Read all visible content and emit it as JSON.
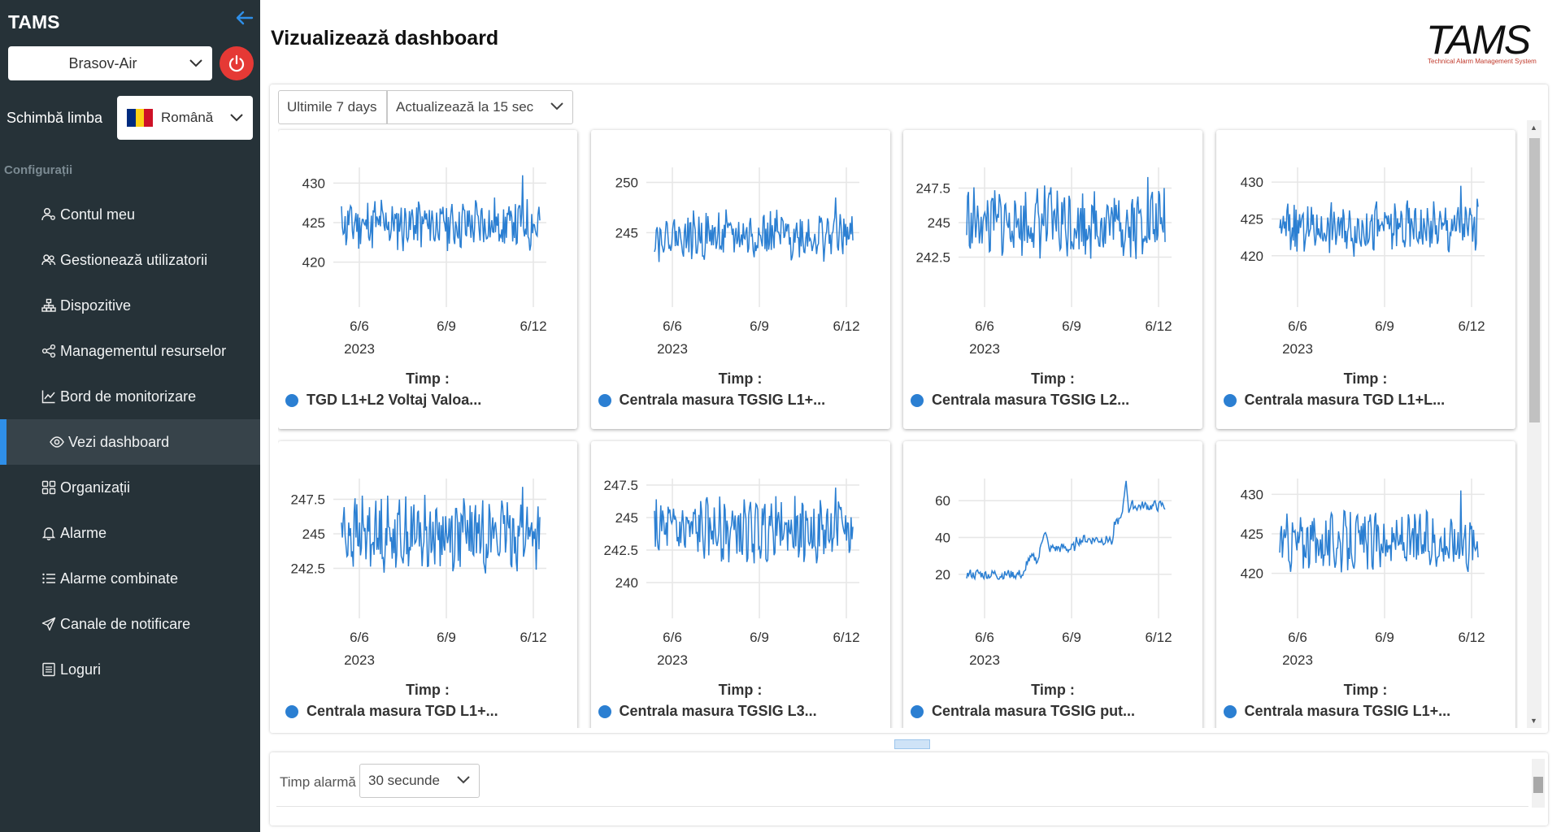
{
  "app": {
    "name": "TAMS",
    "logo_text": "TAMS",
    "logo_subtitle": "Technical Alarm Management System"
  },
  "org_select": {
    "value": "Brasov-Air"
  },
  "language": {
    "label": "Schimbă limba",
    "value": "Română",
    "flag_colors": [
      "#002B7F",
      "#FCD116",
      "#CE1126"
    ]
  },
  "sidebar": {
    "section": "Configurații",
    "items": [
      {
        "label": "Contul meu",
        "icon": "user-gear-icon"
      },
      {
        "label": "Gestionează utilizatorii",
        "icon": "users-icon"
      },
      {
        "label": "Dispozitive",
        "icon": "sitemap-icon"
      },
      {
        "label": "Managementul resurselor",
        "icon": "share-nodes-icon"
      },
      {
        "label": "Bord de monitorizare",
        "icon": "chart-line-icon"
      },
      {
        "label": "Vezi dashboard",
        "icon": "eye-icon",
        "active": true
      },
      {
        "label": "Organizații",
        "icon": "grid-icon"
      },
      {
        "label": "Alarme",
        "icon": "bell-icon"
      },
      {
        "label": "Alarme combinate",
        "icon": "list-icon"
      },
      {
        "label": "Canale de notificare",
        "icon": "paper-plane-icon"
      },
      {
        "label": "Loguri",
        "icon": "log-icon"
      }
    ]
  },
  "header": {
    "title": "Vizualizează dashboard"
  },
  "toolbar": {
    "range_label": "Ultimile 7 days",
    "refresh_value": "Actualizează la 15 sec"
  },
  "bottom": {
    "alarm_label": "Timp alarmă",
    "alarm_value": "30 secunde"
  },
  "colors": {
    "sidebar_bg": "#263238",
    "accent": "#2f8fe8",
    "series": "#2b7fd2",
    "power": "#e53935",
    "logo_red": "#c0392b"
  },
  "chart_data": [
    {
      "type": "line",
      "legend": "TGD L1+L2 Voltaj Valoa...",
      "xlabel": "Timp :",
      "x_ticks": [
        "6/6",
        "6/9",
        "6/12"
      ],
      "x_year": "2023",
      "y_ticks": [
        420,
        425,
        430
      ],
      "ylim": [
        418,
        432
      ],
      "base": 424.8,
      "amp": 2.8,
      "spike": 431.0,
      "trend": "flat",
      "seed": 11
    },
    {
      "type": "line",
      "legend": "Centrala masura TGSIG L1+...",
      "xlabel": "Timp :",
      "x_ticks": [
        "6/6",
        "6/9",
        "6/12"
      ],
      "x_year": "2023",
      "y_ticks": [
        245,
        250
      ],
      "ylim": [
        240.5,
        251.5
      ],
      "base": 244.7,
      "amp": 2.0,
      "spike": 248.5,
      "trend": "flat",
      "seed": 22
    },
    {
      "type": "line",
      "legend": "Centrala masura TGSIG L2...",
      "xlabel": "Timp :",
      "x_ticks": [
        "6/6",
        "6/9",
        "6/12"
      ],
      "x_year": "2023",
      "y_ticks": [
        242.5,
        245,
        247.5
      ],
      "ylim": [
        241.0,
        249.0
      ],
      "base": 245.0,
      "amp": 2.2,
      "spike": 248.3,
      "trend": "flat",
      "seed": 33
    },
    {
      "type": "line",
      "legend": "Centrala masura TGD L1+L...",
      "xlabel": "Timp :",
      "x_ticks": [
        "6/6",
        "6/9",
        "6/12"
      ],
      "x_year": "2023",
      "y_ticks": [
        420,
        425,
        430
      ],
      "ylim": [
        417,
        432
      ],
      "base": 423.8,
      "amp": 3.0,
      "spike": 429.5,
      "trend": "flat",
      "seed": 44
    },
    {
      "type": "line",
      "legend": "Centrala masura TGD L1+...",
      "xlabel": "Timp :",
      "x_ticks": [
        "6/6",
        "6/9",
        "6/12"
      ],
      "x_year": "2023",
      "y_ticks": [
        242.5,
        245,
        247.5
      ],
      "ylim": [
        241.0,
        249.0
      ],
      "base": 245.0,
      "amp": 2.2,
      "spike": 248.4,
      "trend": "flat",
      "seed": 55
    },
    {
      "type": "line",
      "legend": "Centrala masura TGSIG L3...",
      "xlabel": "Timp :",
      "x_ticks": [
        "6/6",
        "6/9",
        "6/12"
      ],
      "x_year": "2023",
      "y_ticks": [
        240,
        242.5,
        245,
        247.5
      ],
      "ylim": [
        239.5,
        248.0
      ],
      "base": 244.0,
      "amp": 2.0,
      "spike": 247.3,
      "trend": "flat",
      "seed": 66
    },
    {
      "type": "line",
      "legend": "Centrala masura TGSIG put...",
      "xlabel": "Timp :",
      "x_ticks": [
        "6/6",
        "6/9",
        "6/12"
      ],
      "x_year": "2023",
      "y_ticks": [
        20,
        40,
        60
      ],
      "ylim": [
        12,
        72
      ],
      "base": 20,
      "amp": 4,
      "spike": 70,
      "trend": "rise",
      "seed": 77
    },
    {
      "type": "line",
      "legend": "Centrala masura TGSIG L1+...",
      "xlabel": "Timp :",
      "x_ticks": [
        "6/6",
        "6/9",
        "6/12"
      ],
      "x_year": "2023",
      "y_ticks": [
        420,
        425,
        430
      ],
      "ylim": [
        418,
        432
      ],
      "base": 424.0,
      "amp": 3.0,
      "spike": 430.5,
      "trend": "flat",
      "seed": 88
    }
  ]
}
